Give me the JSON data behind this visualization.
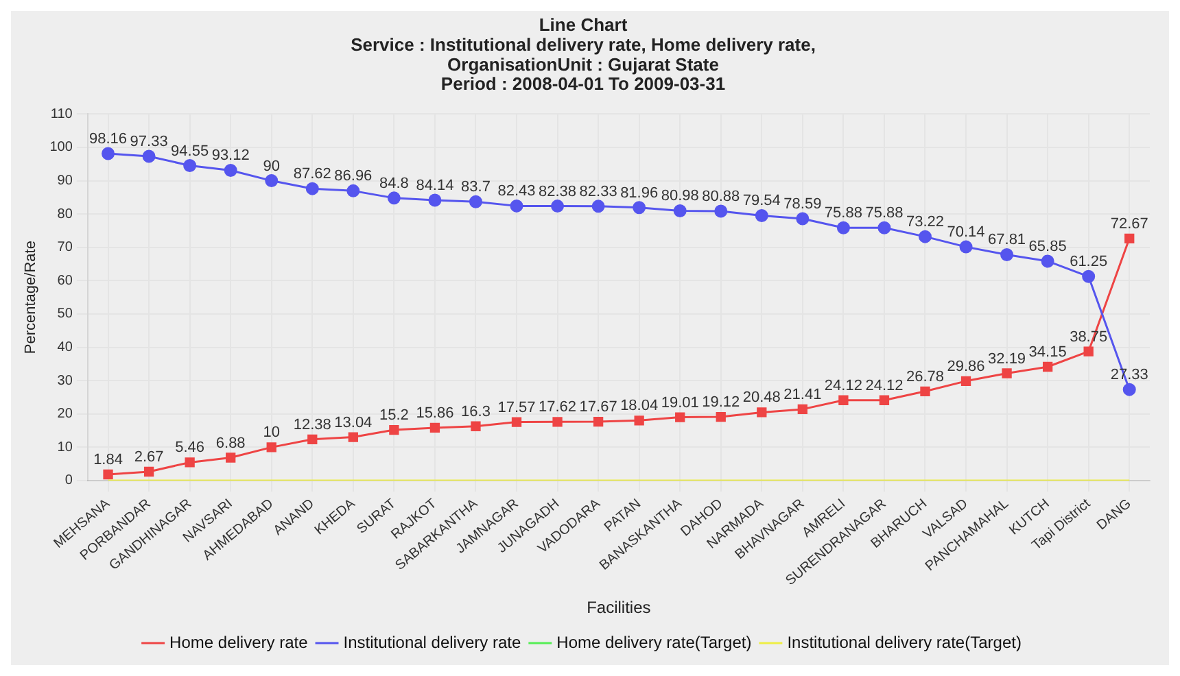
{
  "chart_data": {
    "type": "line",
    "title": "Line Chart",
    "subtitle": [
      "Service : Institutional delivery rate, Home delivery rate,",
      "OrganisationUnit : Gujarat State",
      "Period : 2008-04-01 To 2009-03-31"
    ],
    "xlabel": "Facilities",
    "ylabel": "Percentage/Rate",
    "categories": [
      "MEHSANA",
      "PORBANDAR",
      "GANDHINAGAR",
      "NAVSARI",
      "AHMEDABAD",
      "ANAND",
      "KHEDA",
      "SURAT",
      "RAJKOT",
      "SABARKANTHA",
      "JAMNAGAR",
      "JUNAGADH",
      "VADODARA",
      "PATAN",
      "BANASKANTHA",
      "DAHOD",
      "NARMADA",
      "BHAVNAGAR",
      "AMRELI",
      "SURENDRANAGAR",
      "BHARUCH",
      "VALSAD",
      "PANCHAMAHAL",
      "KUTCH",
      "Tapi District",
      "DANG"
    ],
    "series": [
      {
        "name": "Home delivery rate",
        "color": "#ee4444",
        "marker": "square",
        "values": [
          1.84,
          2.67,
          5.46,
          6.88,
          10,
          12.38,
          13.04,
          15.2,
          15.86,
          16.3,
          17.57,
          17.62,
          17.67,
          18.04,
          19.01,
          19.12,
          20.48,
          21.41,
          24.12,
          24.12,
          26.78,
          29.86,
          32.19,
          34.15,
          38.75,
          72.67
        ],
        "value_labels": [
          "1.84",
          "2.67",
          "5.46",
          "6.88",
          "10",
          "12.38",
          "13.04",
          "15.2",
          "15.86",
          "16.3",
          "17.57",
          "17.62",
          "17.67",
          "18.04",
          "19.01",
          "19.12",
          "20.48",
          "21.41",
          "24.12",
          "24.12",
          "26.78",
          "29.86",
          "32.19",
          "34.15",
          "38.75",
          "72.67"
        ]
      },
      {
        "name": "Institutional delivery rate",
        "color": "#5555ee",
        "marker": "circle",
        "values": [
          98.16,
          97.33,
          94.55,
          93.12,
          90,
          87.62,
          86.96,
          84.8,
          84.14,
          83.7,
          82.43,
          82.38,
          82.33,
          81.96,
          80.98,
          80.88,
          79.54,
          78.59,
          75.88,
          75.88,
          73.22,
          70.14,
          67.81,
          65.85,
          61.25,
          27.33
        ],
        "value_labels": [
          "98.16",
          "97.33",
          "94.55",
          "93.12",
          "90",
          "87.62",
          "86.96",
          "84.8",
          "84.14",
          "83.7",
          "82.43",
          "82.38",
          "82.33",
          "81.96",
          "80.98",
          "80.88",
          "79.54",
          "78.59",
          "75.88",
          "75.88",
          "73.22",
          "70.14",
          "67.81",
          "65.85",
          "61.25",
          "27.33"
        ]
      },
      {
        "name": "Home delivery rate(Target)",
        "color": "#55ee55",
        "marker": "none",
        "values": [
          null,
          null,
          null,
          null,
          null,
          null,
          null,
          null,
          null,
          null,
          null,
          null,
          null,
          null,
          null,
          null,
          null,
          null,
          null,
          null,
          null,
          null,
          null,
          null,
          null,
          null
        ]
      },
      {
        "name": "Institutional delivery rate(Target)",
        "color": "#eeee44",
        "marker": "none",
        "values": [
          0,
          0,
          0,
          0,
          0,
          0,
          0,
          0,
          0,
          0,
          0,
          0,
          0,
          0,
          0,
          0,
          0,
          0,
          0,
          0,
          0,
          0,
          0,
          0,
          0,
          0
        ]
      }
    ],
    "ylim": [
      0,
      110
    ],
    "yticks": [
      0,
      10,
      20,
      30,
      40,
      50,
      60,
      70,
      80,
      90,
      100,
      110
    ],
    "grid": true,
    "legend": "bottom"
  }
}
